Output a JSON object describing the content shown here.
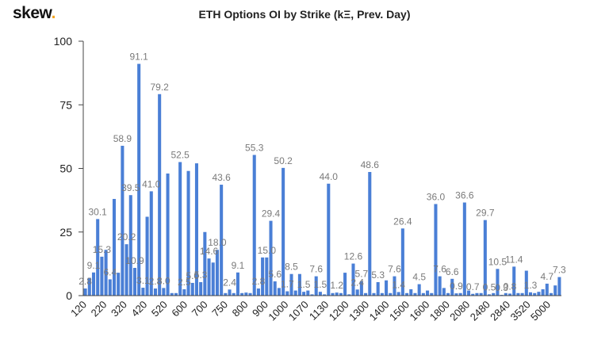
{
  "brand": {
    "name": "skew",
    "dot": ".",
    "accent": "#f5a623"
  },
  "chart_data": {
    "type": "bar",
    "title": "ETH Options OI by Strike (kΞ, Prev. Day)",
    "ylim": [
      0,
      100
    ],
    "yticks": [
      0,
      25,
      50,
      75,
      100
    ],
    "bar_color": "#4a7fd6",
    "x_tick_labels": [
      "120",
      "220",
      "320",
      "420",
      "520",
      "600",
      "700",
      "750",
      "800",
      "900",
      "1000",
      "1070",
      "1130",
      "1200",
      "1300",
      "1400",
      "1500",
      "1600",
      "1800",
      "2080",
      "2480",
      "2840",
      "3520",
      "5000"
    ],
    "values": [
      2.8,
      7,
      9.1,
      30.1,
      15.3,
      18,
      6.4,
      38,
      9,
      58.9,
      20.2,
      39.5,
      10.9,
      91.1,
      3.1,
      31,
      41.0,
      2.8,
      79.2,
      3.0,
      48,
      1,
      1,
      52.5,
      2.5,
      49,
      5.0,
      52,
      5.3,
      25,
      14.6,
      13,
      18.0,
      43.6,
      1,
      2.4,
      1,
      9.1,
      1,
      1.2,
      1,
      55.3,
      2.8,
      15,
      15.0,
      29.4,
      5.6,
      3,
      50.2,
      1.7,
      8.5,
      2,
      8.5,
      1.5,
      2,
      0.5,
      7.6,
      1.5,
      0.5,
      44.0,
      1,
      1.2,
      1,
      9,
      0.5,
      12.6,
      2.4,
      5.7,
      1,
      48.6,
      1,
      5.3,
      1,
      6,
      1,
      7.6,
      1.4,
      26.4,
      1,
      2.5,
      1,
      4.5,
      1,
      2,
      1,
      36.0,
      7.6,
      3,
      1,
      6.6,
      0.9,
      1,
      36.6,
      2,
      0.7,
      1,
      1,
      29.7,
      0.5,
      1,
      10.5,
      0.3,
      1,
      0.8,
      11.4,
      1,
      1,
      9.8,
      1.3,
      1,
      1.5,
      2.5,
      4.7,
      1,
      4,
      7.3
    ],
    "data_labels": [
      {
        "i": 0,
        "text": "2.8"
      },
      {
        "i": 2,
        "text": "9.1"
      },
      {
        "i": 3,
        "text": "30.1"
      },
      {
        "i": 4,
        "text": "15.3"
      },
      {
        "i": 6,
        "text": "6.4"
      },
      {
        "i": 9,
        "text": "58.9"
      },
      {
        "i": 10,
        "text": "20.2"
      },
      {
        "i": 11,
        "text": "39.5"
      },
      {
        "i": 12,
        "text": "10.9"
      },
      {
        "i": 13,
        "text": "91.1"
      },
      {
        "i": 14,
        "text": "3.1"
      },
      {
        "i": 16,
        "text": "41.0"
      },
      {
        "i": 17,
        "text": "2.8"
      },
      {
        "i": 18,
        "text": "79.2"
      },
      {
        "i": 19,
        "text": "3.0"
      },
      {
        "i": 23,
        "text": "52.5"
      },
      {
        "i": 24,
        "text": "2.5"
      },
      {
        "i": 26,
        "text": "5.0"
      },
      {
        "i": 28,
        "text": "5.3"
      },
      {
        "i": 30,
        "text": "14.6"
      },
      {
        "i": 32,
        "text": "18.0"
      },
      {
        "i": 33,
        "text": "43.6"
      },
      {
        "i": 35,
        "text": "2.4"
      },
      {
        "i": 37,
        "text": "9.1"
      },
      {
        "i": 41,
        "text": "55.3"
      },
      {
        "i": 42,
        "text": "2.8"
      },
      {
        "i": 44,
        "text": "15.0"
      },
      {
        "i": 45,
        "text": "29.4"
      },
      {
        "i": 46,
        "text": "5.6"
      },
      {
        "i": 48,
        "text": "50.2"
      },
      {
        "i": 49,
        "text": "1.7"
      },
      {
        "i": 50,
        "text": "8.5"
      },
      {
        "i": 53,
        "text": "1.5"
      },
      {
        "i": 56,
        "text": "7.6"
      },
      {
        "i": 57,
        "text": "1.5"
      },
      {
        "i": 59,
        "text": "44.0"
      },
      {
        "i": 61,
        "text": "1.2"
      },
      {
        "i": 65,
        "text": "12.6"
      },
      {
        "i": 66,
        "text": "2.4"
      },
      {
        "i": 67,
        "text": "5.7"
      },
      {
        "i": 69,
        "text": "48.6"
      },
      {
        "i": 71,
        "text": "5.3"
      },
      {
        "i": 75,
        "text": "7.6"
      },
      {
        "i": 76,
        "text": "1.4"
      },
      {
        "i": 77,
        "text": "26.4"
      },
      {
        "i": 81,
        "text": "4.5"
      },
      {
        "i": 85,
        "text": "36.0"
      },
      {
        "i": 86,
        "text": "7.6"
      },
      {
        "i": 89,
        "text": "6.6"
      },
      {
        "i": 90,
        "text": "0.9"
      },
      {
        "i": 92,
        "text": "36.6"
      },
      {
        "i": 94,
        "text": "0.7"
      },
      {
        "i": 97,
        "text": "29.7"
      },
      {
        "i": 98,
        "text": "0.5"
      },
      {
        "i": 100,
        "text": "10.5"
      },
      {
        "i": 101,
        "text": "0.3"
      },
      {
        "i": 103,
        "text": "0.8"
      },
      {
        "i": 104,
        "text": "11.4"
      },
      {
        "i": 108,
        "text": "1.3"
      },
      {
        "i": 112,
        "text": "4.7"
      },
      {
        "i": 115,
        "text": "7.3"
      }
    ],
    "grid": false,
    "legend": "none"
  }
}
